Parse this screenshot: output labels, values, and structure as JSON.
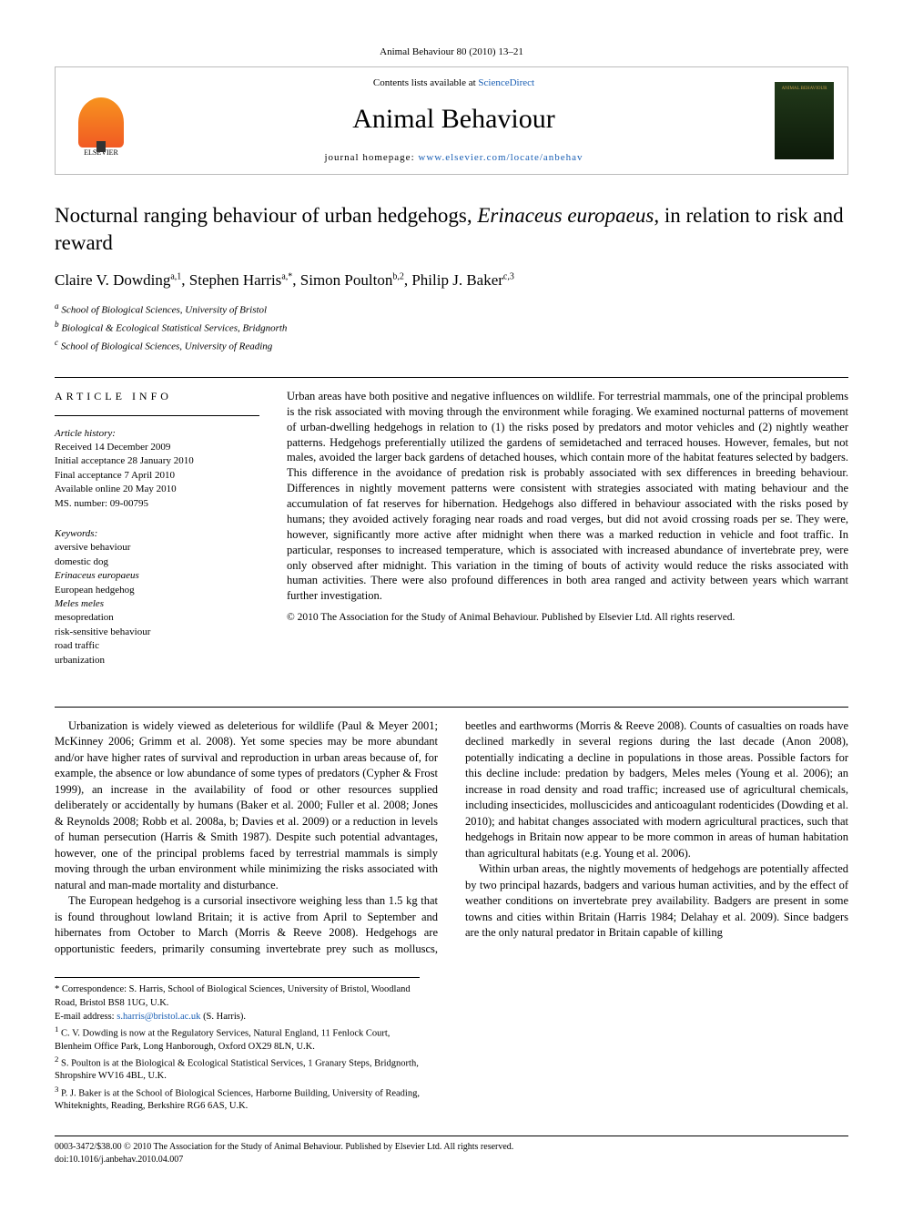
{
  "masthead": {
    "label": "Animal Behaviour 80 (2010) 13–21",
    "contents_prefix": "Contents lists available at ",
    "contents_link": "ScienceDirect",
    "journal_name": "Animal Behaviour",
    "home_prefix": "journal homepage: ",
    "home_link": "www.elsevier.com/locate/anbehav",
    "publisher_logo_text": "ELSEVIER",
    "cover_title": "ANIMAL BEHAVIOUR"
  },
  "article": {
    "title_plain": "Nocturnal ranging behaviour of urban hedgehogs, ",
    "title_italic": "Erinaceus europaeus",
    "title_tail": ", in relation to risk and reward",
    "authors_html": "Claire V. Dowding",
    "authors": [
      {
        "name": "Claire V. Dowding",
        "sup": "a,1"
      },
      {
        "name": "Stephen Harris",
        "sup": "a,*"
      },
      {
        "name": "Simon Poulton",
        "sup": "b,2"
      },
      {
        "name": "Philip J. Baker",
        "sup": "c,3"
      }
    ],
    "affiliations": [
      {
        "sup": "a",
        "text": "School of Biological Sciences, University of Bristol"
      },
      {
        "sup": "b",
        "text": "Biological & Ecological Statistical Services, Bridgnorth"
      },
      {
        "sup": "c",
        "text": "School of Biological Sciences, University of Reading"
      }
    ]
  },
  "info": {
    "heading": "article info",
    "history_head": "Article history:",
    "history": [
      "Received 14 December 2009",
      "Initial acceptance 28 January 2010",
      "Final acceptance 7 April 2010",
      "Available online 20 May 2010",
      "MS. number: 09-00795"
    ],
    "keywords_head": "Keywords:",
    "keywords": [
      "aversive behaviour",
      "domestic dog",
      "Erinaceus europaeus",
      "European hedgehog",
      "Meles meles",
      "mesopredation",
      "risk-sensitive behaviour",
      "road traffic",
      "urbanization"
    ]
  },
  "abstract": {
    "text": "Urban areas have both positive and negative influences on wildlife. For terrestrial mammals, one of the principal problems is the risk associated with moving through the environment while foraging. We examined nocturnal patterns of movement of urban-dwelling hedgehogs in relation to (1) the risks posed by predators and motor vehicles and (2) nightly weather patterns. Hedgehogs preferentially utilized the gardens of semidetached and terraced houses. However, females, but not males, avoided the larger back gardens of detached houses, which contain more of the habitat features selected by badgers. This difference in the avoidance of predation risk is probably associated with sex differences in breeding behaviour. Differences in nightly movement patterns were consistent with strategies associated with mating behaviour and the accumulation of fat reserves for hibernation. Hedgehogs also differed in behaviour associated with the risks posed by humans; they avoided actively foraging near roads and road verges, but did not avoid crossing roads per se. They were, however, significantly more active after midnight when there was a marked reduction in vehicle and foot traffic. In particular, responses to increased temperature, which is associated with increased abundance of invertebrate prey, were only observed after midnight. This variation in the timing of bouts of activity would reduce the risks associated with human activities. There were also profound differences in both area ranged and activity between years which warrant further investigation.",
    "copyright": "© 2010 The Association for the Study of Animal Behaviour. Published by Elsevier Ltd. All rights reserved."
  },
  "body": {
    "p1": "Urbanization is widely viewed as deleterious for wildlife (Paul & Meyer 2001; McKinney 2006; Grimm et al. 2008). Yet some species may be more abundant and/or have higher rates of survival and reproduction in urban areas because of, for example, the absence or low abundance of some types of predators (Cypher & Frost 1999), an increase in the availability of food or other resources supplied deliberately or accidentally by humans (Baker et al. 2000; Fuller et al. 2008; Jones & Reynolds 2008; Robb et al. 2008a, b; Davies et al. 2009) or a reduction in levels of human persecution (Harris & Smith 1987). Despite such potential advantages, however, one of the principal problems faced by terrestrial mammals is simply moving through the urban environment while minimizing the risks associated with natural and man-made mortality and disturbance.",
    "p2": "The European hedgehog is a cursorial insectivore weighing less than 1.5 kg that is found throughout lowland Britain; it is active from April to September and hibernates from October to March (Morris & Reeve 2008). Hedgehogs are opportunistic feeders, primarily consuming invertebrate prey such as molluscs, beetles and earthworms (Morris & Reeve 2008). Counts of casualties on roads have declined markedly in several regions during the last decade (Anon 2008), potentially indicating a decline in populations in those areas. Possible factors for this decline include: predation by badgers, Meles meles (Young et al. 2006); an increase in road density and road traffic; increased use of agricultural chemicals, including insecticides, molluscicides and anticoagulant rodenticides (Dowding et al. 2010); and habitat changes associated with modern agricultural practices, such that hedgehogs in Britain now appear to be more common in areas of human habitation than agricultural habitats (e.g. Young et al. 2006).",
    "p3": "Within urban areas, the nightly movements of hedgehogs are potentially affected by two principal hazards, badgers and various human activities, and by the effect of weather conditions on invertebrate prey availability. Badgers are present in some towns and cities within Britain (Harris 1984; Delahay et al. 2009). Since badgers are the only natural predator in Britain capable of killing"
  },
  "footnotes": {
    "correspondence": "* Correspondence: S. Harris, School of Biological Sciences, University of Bristol, Woodland Road, Bristol BS8 1UG, U.K.",
    "email_label": "E-mail address: ",
    "email": "s.harris@bristol.ac.uk",
    "email_tail": " (S. Harris).",
    "n1": "C. V. Dowding is now at the Regulatory Services, Natural England, 11 Fenlock Court, Blenheim Office Park, Long Hanborough, Oxford OX29 8LN, U.K.",
    "n2": "S. Poulton is at the Biological & Ecological Statistical Services, 1 Granary Steps, Bridgnorth, Shropshire WV16 4BL, U.K.",
    "n3": "P. J. Baker is at the School of Biological Sciences, Harborne Building, University of Reading, Whiteknights, Reading, Berkshire RG6 6AS, U.K."
  },
  "footer": {
    "line1": "0003-3472/$38.00 © 2010 The Association for the Study of Animal Behaviour. Published by Elsevier Ltd. All rights reserved.",
    "line2": "doi:10.1016/j.anbehav.2010.04.007"
  },
  "colors": {
    "link": "#1a5fb4",
    "elsevier_orange": "#f15a24",
    "border": "#bbb",
    "cover_bg": "#1a3012"
  }
}
